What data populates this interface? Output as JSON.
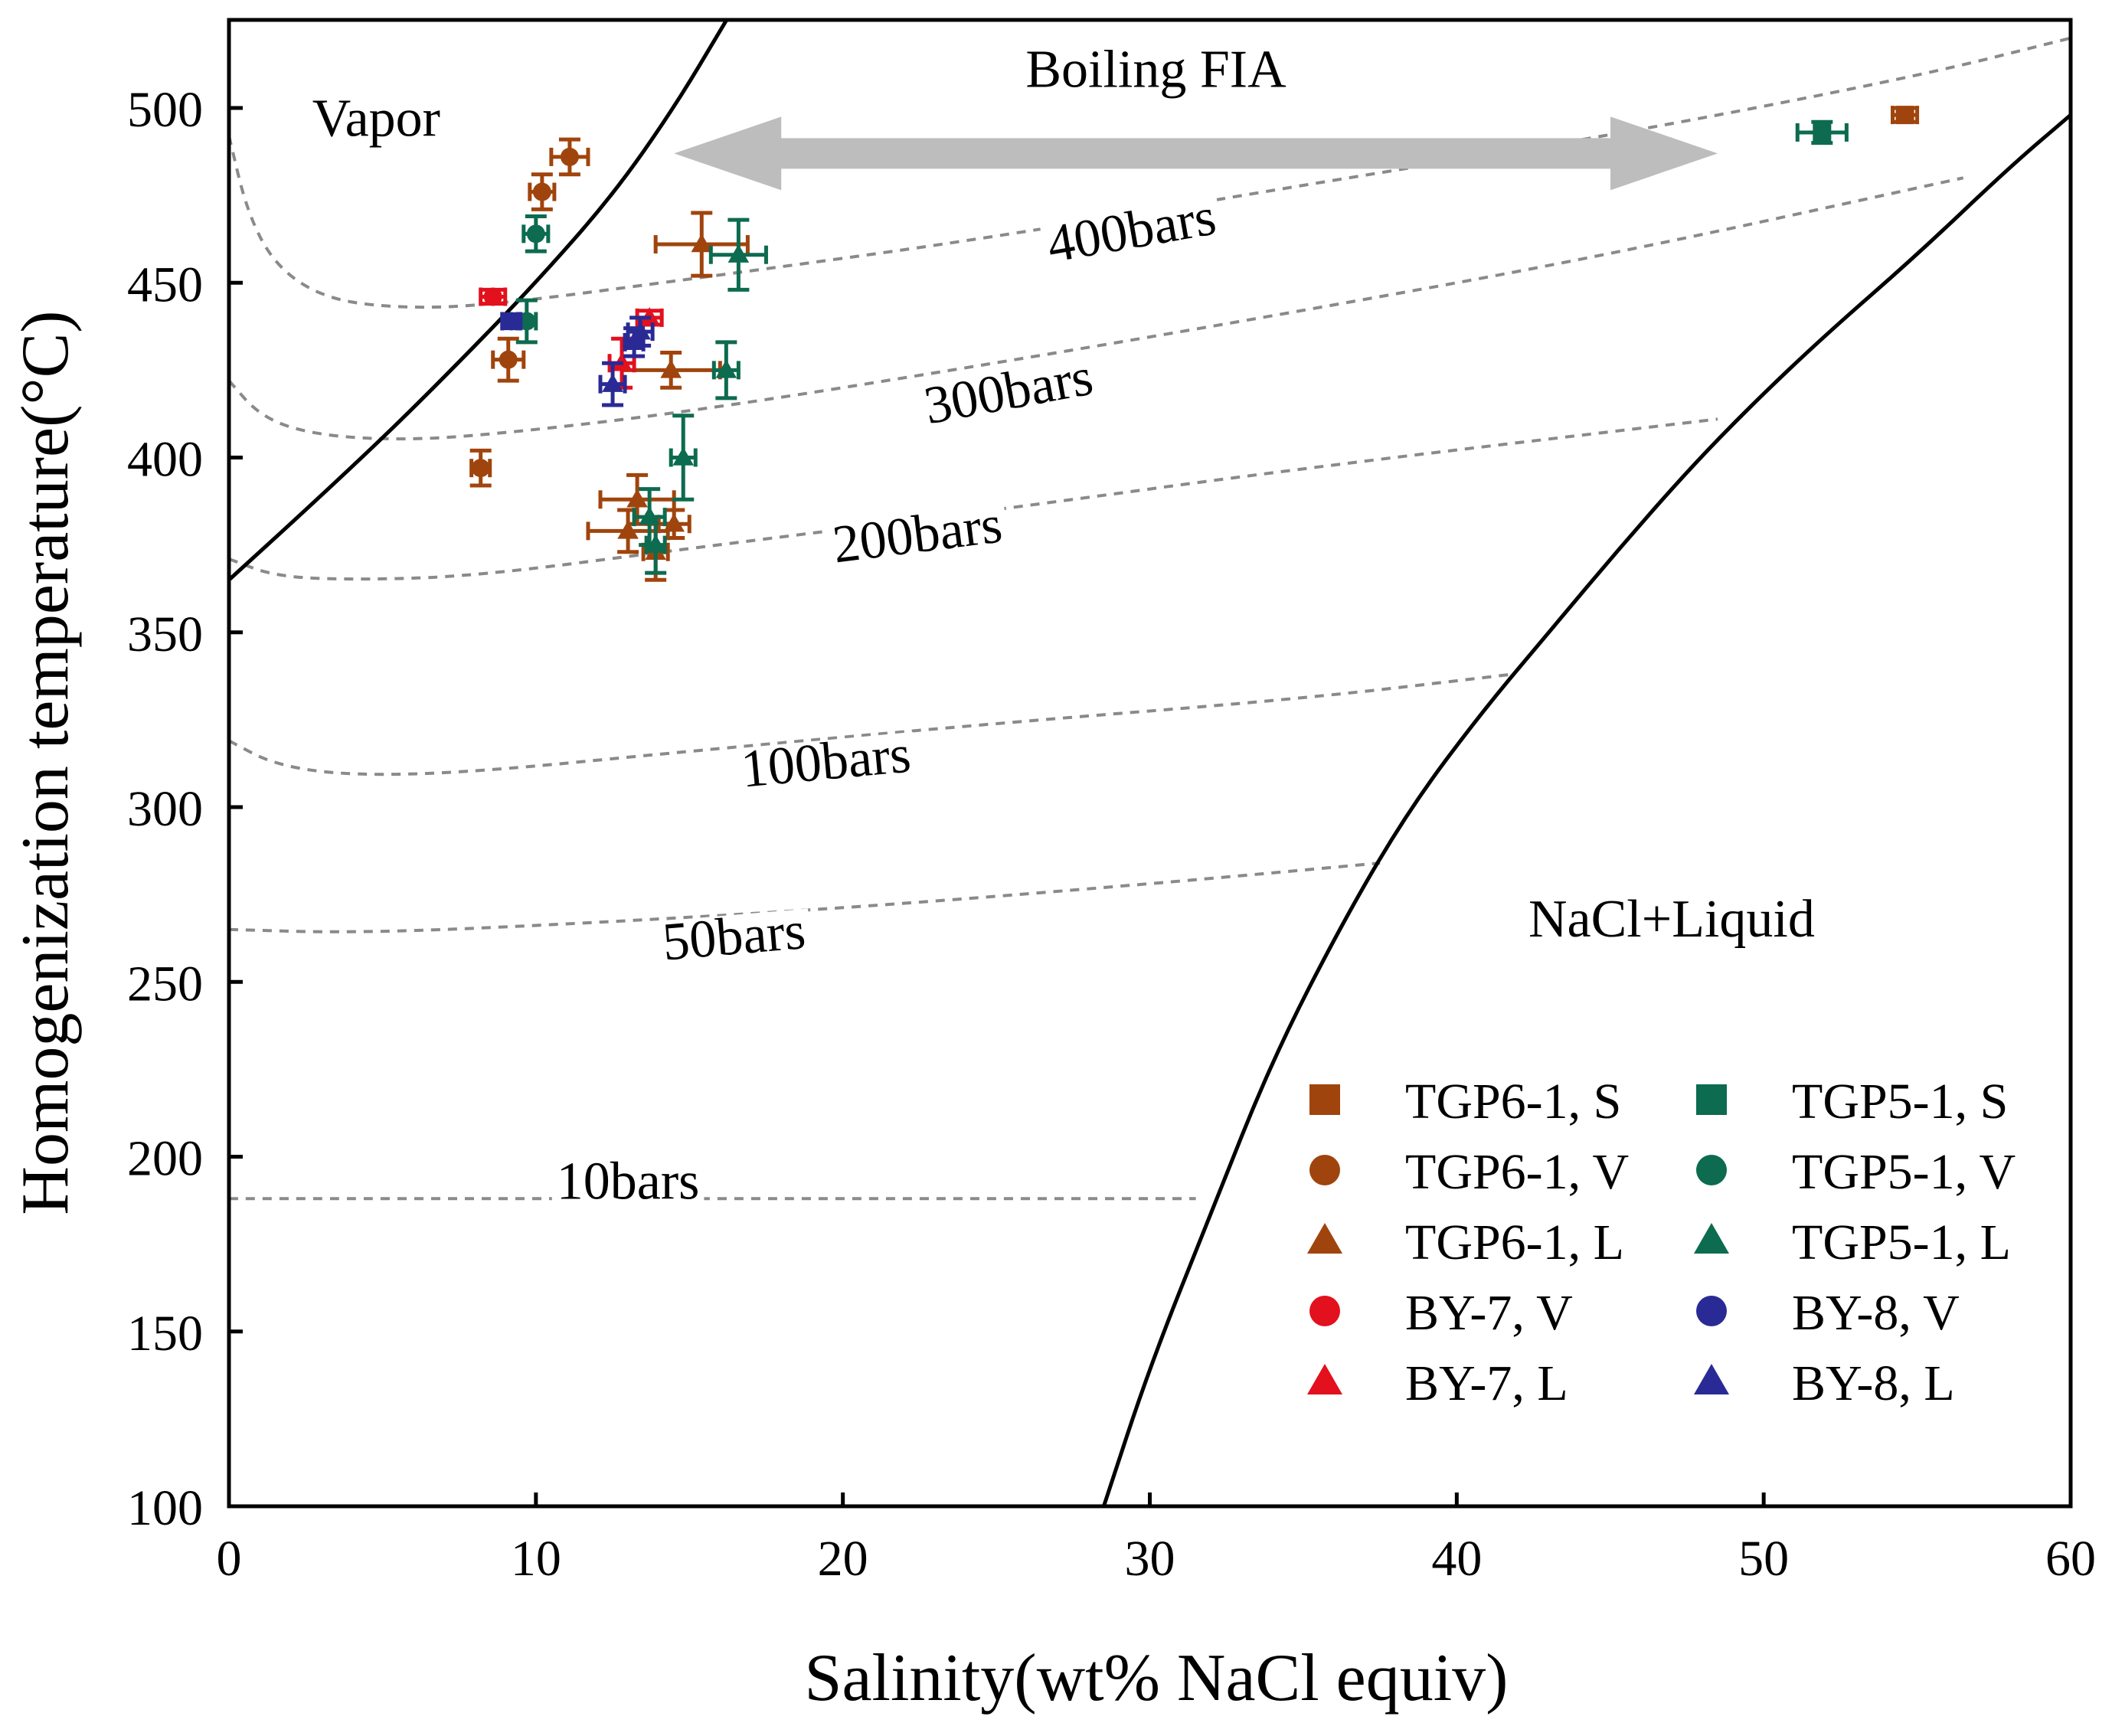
{
  "chart_data": {
    "type": "scatter",
    "title": "",
    "xlabel": "Salinity(wt% NaCl equiv)",
    "ylabel": "Homogenization temperature(°C)",
    "xlim": [
      0,
      60
    ],
    "ylim": [
      100,
      525
    ],
    "xticks": [
      0,
      10,
      20,
      30,
      40,
      50,
      60
    ],
    "yticks": [
      100,
      150,
      200,
      250,
      300,
      350,
      400,
      450,
      500
    ],
    "grid": false,
    "legend_position": "bottom-right",
    "colors": {
      "brown": "#a0440d",
      "green": "#0d6b4f",
      "red": "#e3101e",
      "blue": "#2a2a96",
      "boundary": "#000000",
      "isobar": "#8a8a8a",
      "arrow": "#bdbdbd"
    },
    "series": [
      {
        "name": "TGP6-1, S",
        "marker": "square",
        "color": "#a0440d",
        "points": [
          [
            54.6,
            498,
            0.4,
            2
          ]
        ]
      },
      {
        "name": "TGP5-1, S",
        "marker": "square",
        "color": "#0d6b4f",
        "points": [
          [
            51.9,
            493,
            0.8,
            3
          ]
        ]
      },
      {
        "name": "TGP6-1, V",
        "marker": "circle",
        "color": "#a0440d",
        "points": [
          [
            11.1,
            486,
            0.6,
            5
          ],
          [
            10.2,
            476,
            0.4,
            5
          ],
          [
            9.1,
            428,
            0.5,
            6
          ],
          [
            8.2,
            397,
            0.3,
            5
          ]
        ]
      },
      {
        "name": "TGP5-1, V",
        "marker": "circle",
        "color": "#0d6b4f",
        "points": [
          [
            10.0,
            464,
            0.4,
            5
          ],
          [
            9.7,
            439,
            0.3,
            6
          ]
        ]
      },
      {
        "name": "TGP6-1, L",
        "marker": "triangle",
        "color": "#a0440d",
        "points": [
          [
            15.4,
            461,
            1.5,
            9
          ],
          [
            14.4,
            425,
            1.6,
            5
          ],
          [
            13.3,
            388,
            1.2,
            7
          ],
          [
            13.0,
            379,
            1.3,
            6
          ],
          [
            14.5,
            381,
            0.5,
            4
          ],
          [
            13.9,
            373,
            0.4,
            8
          ]
        ]
      },
      {
        "name": "TGP5-1, L",
        "marker": "triangle",
        "color": "#0d6b4f",
        "points": [
          [
            16.6,
            458,
            0.9,
            10
          ],
          [
            16.2,
            425,
            0.4,
            8
          ],
          [
            14.8,
            400,
            0.4,
            12
          ],
          [
            13.7,
            383,
            0.5,
            8
          ],
          [
            13.9,
            375,
            0.3,
            8
          ]
        ]
      },
      {
        "name": "BY-7, V",
        "marker": "circle",
        "color": "#e3101e",
        "points": [
          [
            8.6,
            446,
            0.4,
            2
          ]
        ]
      },
      {
        "name": "BY-8, V",
        "marker": "circle",
        "color": "#2a2a96",
        "points": [
          [
            9.2,
            439,
            0.3,
            2
          ]
        ]
      },
      {
        "name": "BY-7, L",
        "marker": "triangle",
        "color": "#e3101e",
        "points": [
          [
            13.7,
            440,
            0.4,
            2
          ],
          [
            12.8,
            427,
            0.4,
            7
          ]
        ]
      },
      {
        "name": "BY-8, L",
        "marker": "triangle",
        "color": "#2a2a96",
        "points": [
          [
            13.4,
            436,
            0.4,
            4
          ],
          [
            13.2,
            433,
            0.3,
            4
          ],
          [
            12.5,
            421,
            0.4,
            6
          ]
        ]
      }
    ],
    "legend_order": [
      [
        "TGP6-1, S",
        "TGP5-1, S"
      ],
      [
        "TGP6-1, V",
        "TGP5-1, V"
      ],
      [
        "TGP6-1, L",
        "TGP5-1, L"
      ],
      [
        "BY-7, V",
        "BY-8, V"
      ],
      [
        "BY-7, L",
        "BY-8, L"
      ]
    ],
    "boundaries": [
      {
        "name": "vapor-boundary",
        "points": [
          [
            0,
            365
          ],
          [
            2.5,
            385
          ],
          [
            5.3,
            408
          ],
          [
            7.8,
            430
          ],
          [
            10.1,
            451
          ],
          [
            12.5,
            475
          ],
          [
            14.5,
            500
          ],
          [
            16.2,
            525
          ]
        ]
      },
      {
        "name": "halite-saturation",
        "points": [
          [
            28.5,
            100
          ],
          [
            30,
            140
          ],
          [
            32,
            184
          ],
          [
            34,
            228
          ],
          [
            36.4,
            269
          ],
          [
            38.5,
            300
          ],
          [
            40.8,
            327
          ],
          [
            43,
            350
          ],
          [
            45.2,
            373
          ],
          [
            47.5,
            396
          ],
          [
            49.6,
            415
          ],
          [
            52,
            435
          ],
          [
            55,
            458
          ],
          [
            58,
            483
          ],
          [
            60,
            498
          ]
        ]
      }
    ],
    "isobars": [
      {
        "label": "400bars",
        "label_at": [
          29.5,
          460
        ],
        "points": [
          [
            0,
            492
          ],
          [
            0.6,
            470
          ],
          [
            1.5,
            455
          ],
          [
            3,
            446
          ],
          [
            5,
            443
          ],
          [
            8,
            443
          ],
          [
            15,
            451
          ],
          [
            25,
            463
          ],
          [
            35,
            478
          ],
          [
            45,
            492
          ],
          [
            55,
            509
          ],
          [
            60,
            520
          ]
        ]
      },
      {
        "label": "300bars",
        "label_at": [
          25.5,
          414
        ],
        "points": [
          [
            0,
            422
          ],
          [
            1,
            412
          ],
          [
            2.5,
            407
          ],
          [
            5,
            405
          ],
          [
            8,
            406
          ],
          [
            15,
            413
          ],
          [
            25,
            427
          ],
          [
            35,
            442
          ],
          [
            45,
            458
          ],
          [
            56.5,
            480
          ]
        ]
      },
      {
        "label": "200bars",
        "label_at": [
          22.5,
          373
        ],
        "points": [
          [
            0,
            371
          ],
          [
            1.5,
            366
          ],
          [
            4,
            365
          ],
          [
            8,
            366
          ],
          [
            15,
            374
          ],
          [
            25,
            385
          ],
          [
            35,
            397
          ],
          [
            48.5,
            411
          ]
        ]
      },
      {
        "label": "100bars",
        "label_at": [
          19.5,
          308
        ],
        "points": [
          [
            0,
            319
          ],
          [
            1.5,
            312
          ],
          [
            4,
            309
          ],
          [
            8,
            310
          ],
          [
            15,
            316
          ],
          [
            25,
            324
          ],
          [
            35,
            331
          ],
          [
            41.8,
            338
          ]
        ]
      },
      {
        "label": "50bars",
        "label_at": [
          16.5,
          258
        ],
        "points": [
          [
            0,
            265
          ],
          [
            4,
            264
          ],
          [
            10,
            266
          ],
          [
            20,
            271
          ],
          [
            30,
            278
          ],
          [
            37.5,
            284
          ]
        ]
      },
      {
        "label": "10bars",
        "label_at": [
          13,
          188
        ],
        "points": [
          [
            0,
            188
          ],
          [
            10,
            188
          ],
          [
            20,
            188
          ],
          [
            31.5,
            188
          ]
        ]
      }
    ],
    "annotations": [
      {
        "text": "Vapor",
        "at": [
          4.8,
          492
        ]
      },
      {
        "text": "Boiling FIA",
        "at": [
          30.2,
          506
        ]
      },
      {
        "text": "NaCl+Liquid",
        "at": [
          47,
          263
        ]
      }
    ],
    "boiling_arrow": {
      "from": [
        14.5,
        487
      ],
      "to": [
        48.5,
        487
      ]
    }
  }
}
